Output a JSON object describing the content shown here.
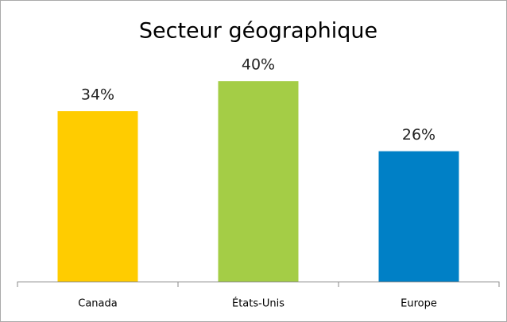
{
  "chart_data": {
    "type": "bar",
    "title": "Secteur géographique",
    "categories": [
      "Canada",
      "États-Unis",
      "Europe"
    ],
    "values": [
      34,
      40,
      26
    ],
    "value_labels": [
      "34%",
      "40%",
      "26%"
    ],
    "colors": [
      "#ffcc00",
      "#a4cd46",
      "#0080c6"
    ]
  }
}
